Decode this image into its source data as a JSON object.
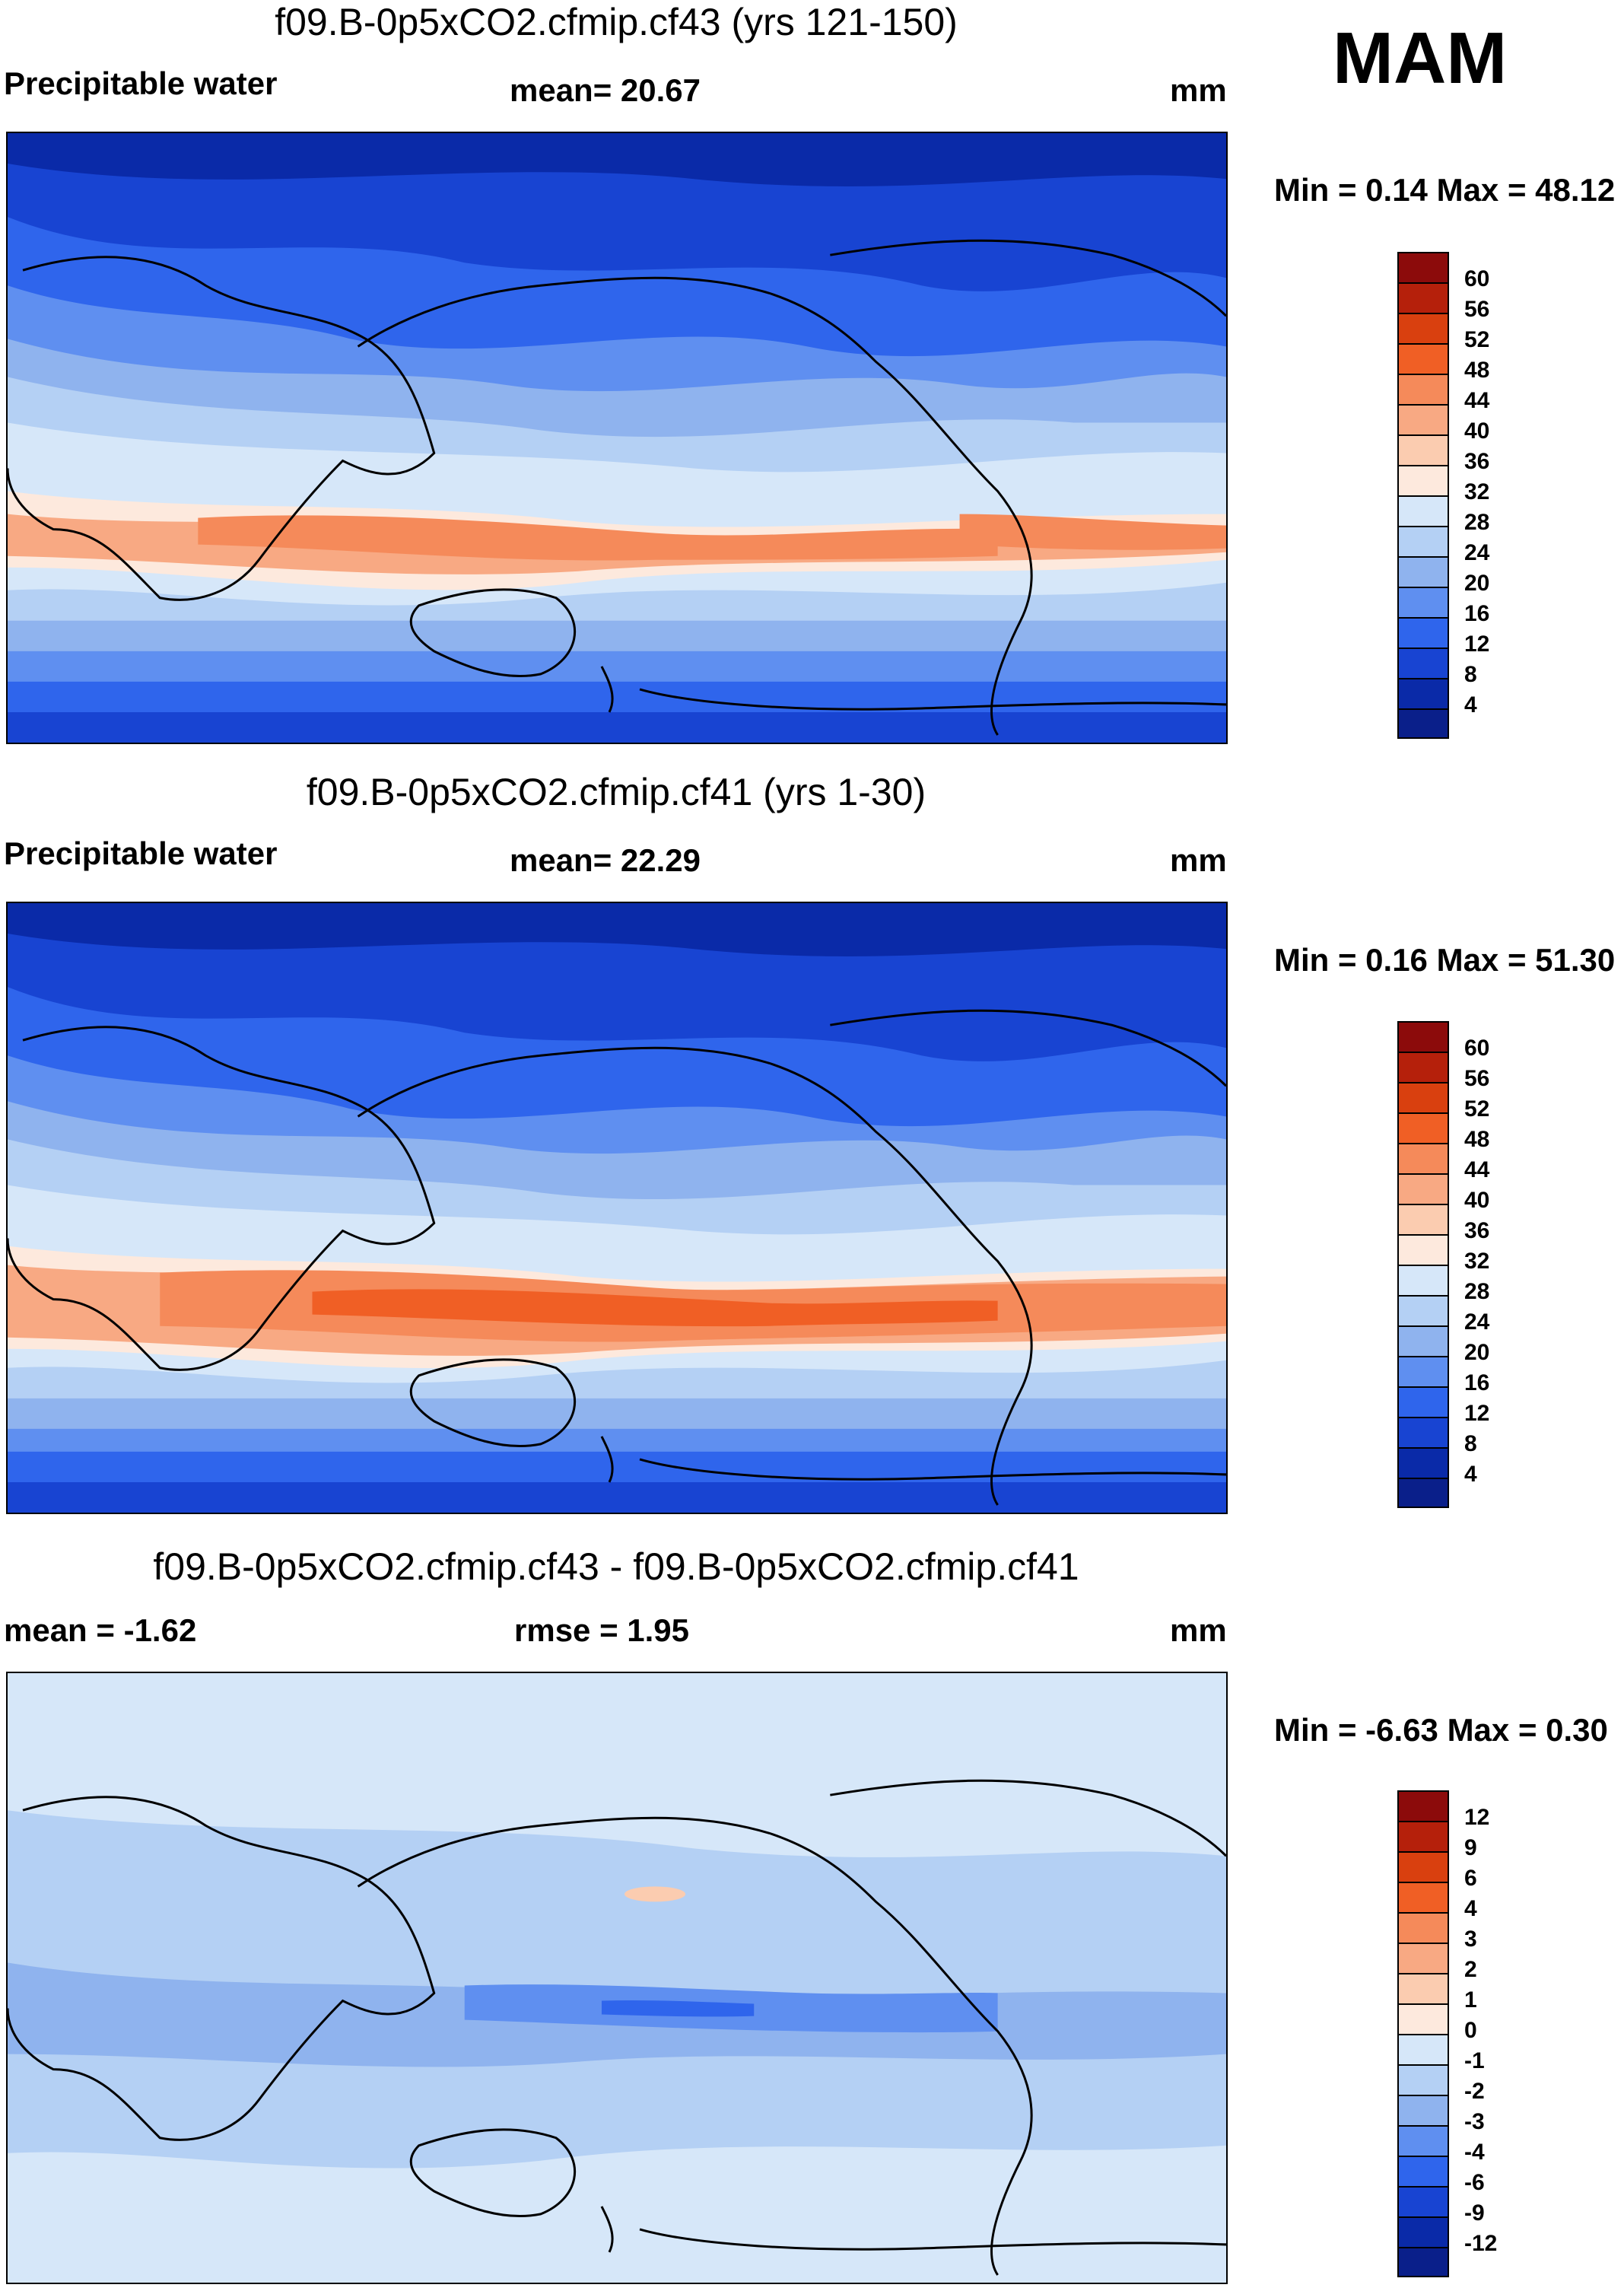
{
  "season": "MAM",
  "panels": [
    {
      "title": "f09.B-0p5xCO2.cfmip.cf43 (yrs 121-150)",
      "left_label": "Precipitable water",
      "center_label": "mean=  20.67",
      "units": "mm",
      "minmax": "Min =   0.14 Max =  48.12",
      "colorbar": {
        "labels": [
          "60",
          "56",
          "52",
          "48",
          "44",
          "40",
          "36",
          "32",
          "28",
          "24",
          "20",
          "16",
          "12",
          "8",
          "4"
        ],
        "colors": [
          "#8c0b0b",
          "#b5200b",
          "#d9400f",
          "#f05f25",
          "#f58a5a",
          "#f8a983",
          "#fbccb0",
          "#fde9dd",
          "#d6e7f9",
          "#b4d0f4",
          "#8fb3ee",
          "#5f8ff0",
          "#2f65ec",
          "#1844d2",
          "#0a2aa8",
          "#0a1f8a"
        ]
      }
    },
    {
      "title": "f09.B-0p5xCO2.cfmip.cf41 (yrs 1-30)",
      "left_label": "Precipitable water",
      "center_label": "mean=  22.29",
      "units": "mm",
      "minmax": "Min =   0.16 Max =  51.30",
      "colorbar": {
        "labels": [
          "60",
          "56",
          "52",
          "48",
          "44",
          "40",
          "36",
          "32",
          "28",
          "24",
          "20",
          "16",
          "12",
          "8",
          "4"
        ],
        "colors": [
          "#8c0b0b",
          "#b5200b",
          "#d9400f",
          "#f05f25",
          "#f58a5a",
          "#f8a983",
          "#fbccb0",
          "#fde9dd",
          "#d6e7f9",
          "#b4d0f4",
          "#8fb3ee",
          "#5f8ff0",
          "#2f65ec",
          "#1844d2",
          "#0a2aa8",
          "#0a1f8a"
        ]
      }
    },
    {
      "title": "f09.B-0p5xCO2.cfmip.cf43 - f09.B-0p5xCO2.cfmip.cf41",
      "left_label": "mean =  -1.62",
      "center_label": "rmse =   1.95",
      "units": "mm",
      "minmax": "Min =  -6.63 Max =   0.30",
      "colorbar": {
        "labels": [
          "12",
          "9",
          "6",
          "4",
          "3",
          "2",
          "1",
          "0",
          "-1",
          "-2",
          "-3",
          "-4",
          "-6",
          "-9",
          "-12"
        ],
        "colors": [
          "#8c0b0b",
          "#b5200b",
          "#d9400f",
          "#f05f25",
          "#f58a5a",
          "#f8a983",
          "#fbccb0",
          "#fde9dd",
          "#d6e7f9",
          "#b4d0f4",
          "#8fb3ee",
          "#5f8ff0",
          "#2f65ec",
          "#1844d2",
          "#0a2aa8",
          "#0a1f8a"
        ]
      }
    }
  ]
}
